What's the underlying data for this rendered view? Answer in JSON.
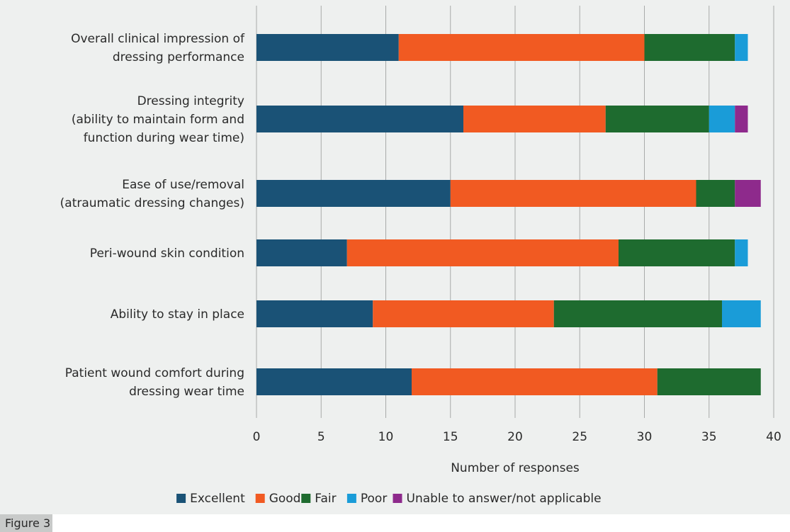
{
  "caption": "Figure 3",
  "chart_data": {
    "type": "bar",
    "orientation": "horizontal",
    "stacked": true,
    "categories": [
      [
        "Overall clinical impression of",
        "dressing performance"
      ],
      [
        "Dressing integrity",
        "(ability to maintain form and",
        "function during wear time)"
      ],
      [
        "Ease of use/removal",
        "(atraumatic dressing changes)"
      ],
      [
        "Peri-wound skin condition"
      ],
      [
        "Ability to stay in place"
      ],
      [
        "Patient wound comfort during",
        "dressing wear time"
      ]
    ],
    "series": [
      {
        "name": "Excellent",
        "color": "#1a5276",
        "values": [
          11,
          16,
          15,
          7,
          9,
          12
        ]
      },
      {
        "name": "Good",
        "color": "#f15a22",
        "values": [
          19,
          11,
          19,
          21,
          14,
          19
        ]
      },
      {
        "name": "Fair",
        "color": "#1e6b2f",
        "values": [
          7,
          8,
          3,
          9,
          13,
          8
        ]
      },
      {
        "name": "Poor",
        "color": "#1a9cd8",
        "values": [
          1,
          2,
          0,
          1,
          3,
          0
        ]
      },
      {
        "name": "Unable to answer/not applicable",
        "color": "#8e2a8c",
        "values": [
          0,
          1,
          2,
          0,
          0,
          0
        ]
      }
    ],
    "xlabel": "Number of responses",
    "xlim": [
      0,
      40
    ],
    "xticks": [
      "0",
      "5",
      "10",
      "15",
      "20",
      "25",
      "30",
      "35",
      "40"
    ],
    "grid": true,
    "legend_position": "bottom"
  }
}
